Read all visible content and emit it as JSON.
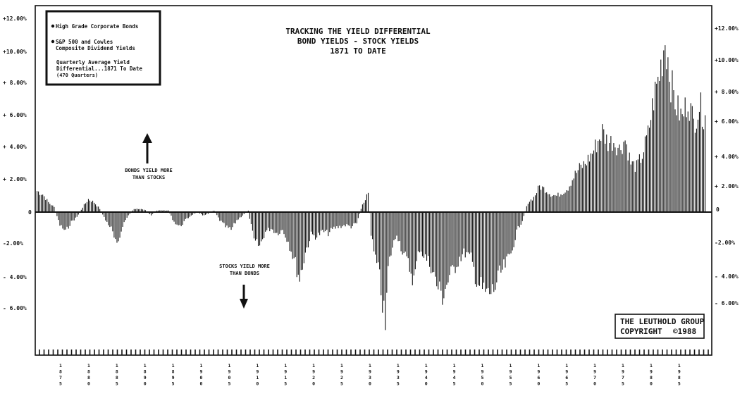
{
  "title": {
    "line1": "TRACKING THE YIELD DIFFERENTIAL",
    "line2": "BOND YIELDS - STOCK YIELDS",
    "line3": "1871 TO DATE"
  },
  "legend": {
    "item1": "High Grade Corporate Bonds",
    "item2_line1": "S&P 500 and Cowles",
    "item2_line2": "Composite Dividend Yields",
    "note_line1": "Quarterly Average Yield",
    "note_line2": "Differential...1871 To Date",
    "note_line3": "(470 Quarters)"
  },
  "annotations": {
    "bonds_line1": "BONDS YIELD MORE",
    "bonds_line2": "THAN STOCKS",
    "stocks_line1": "STOCKS YIELD MORE",
    "stocks_line2": "THAN BONDS"
  },
  "copyright": {
    "line1": "THE LEUTHOLD GROUP",
    "line2": "COPYRIGHT",
    "line3": "©1988"
  },
  "left_ticks": [
    "+12.00%",
    "+10.00%",
    "+ 8.00%",
    "+ 6.00%",
    "+ 4.00%",
    "+ 2.00%",
    "0",
    "-2.00%",
    "- 4.00%",
    "- 6.00%"
  ],
  "right_ticks": [
    "+12.00%",
    "+10.00%",
    "+ 8.00%",
    "+ 6.00%",
    "+ 4.00%",
    "+ 2.00%",
    "0",
    "-2.00%",
    "- 4.00%",
    "- 6.00%"
  ],
  "year_labels": [
    "1875",
    "1880",
    "1885",
    "1890",
    "1895",
    "1900",
    "1905",
    "1910",
    "1915",
    "1920",
    "1925",
    "1930",
    "1935",
    "1940",
    "1945",
    "1950",
    "1955",
    "1960",
    "1965",
    "1970",
    "1975",
    "1980",
    "1985"
  ],
  "chart_data": {
    "type": "bar",
    "x_unit": "year",
    "y_unit": "percent",
    "ylim": [
      -9.0,
      12.5
    ],
    "xlim": [
      1871,
      1988
    ],
    "grid": false,
    "legend_position": "top-left",
    "series": [
      {
        "x": [
          1871.0,
          1872.0,
          1873.0,
          1874.0,
          1875.0,
          1876.0,
          1877.0,
          1878.0,
          1879.0,
          1880.0,
          1881.0,
          1882.0,
          1883.0,
          1884.0,
          1885.0,
          1886.0,
          1887.0,
          1888.0,
          1889.0,
          1890.0,
          1891.0,
          1892.0,
          1893.0,
          1894.0,
          1895.0,
          1896.0,
          1897.0,
          1898.0,
          1899.0,
          1900.0,
          1901.0,
          1902.0,
          1903.0,
          1904.0,
          1905.0,
          1906.0,
          1907.0,
          1908.0,
          1909.0,
          1910.0,
          1911.0,
          1912.0,
          1913.0,
          1914.0,
          1915.0,
          1916.0,
          1917.0,
          1918.0,
          1919.0,
          1920.0,
          1921.0,
          1922.0,
          1923.0,
          1924.0,
          1925.0,
          1926.0,
          1927.0,
          1928.0,
          1929.0,
          1929.5,
          1930.0,
          1931.0,
          1932.0,
          1932.5,
          1933.0,
          1934.0,
          1935.0,
          1936.0,
          1937.0,
          1938.0,
          1939.0,
          1940.0,
          1941.0,
          1942.0,
          1943.0,
          1944.0,
          1945.0,
          1946.0,
          1947.0,
          1948.0,
          1949.0,
          1950.0,
          1951.0,
          1952.0,
          1953.0,
          1954.0,
          1955.0,
          1956.0,
          1957.0,
          1958.0,
          1959.0,
          1960.0,
          1961.0,
          1962.0,
          1963.0,
          1964.0,
          1965.0,
          1966.0,
          1967.0,
          1968.0,
          1969.0,
          1970.0,
          1971.0,
          1972.0,
          1973.0,
          1974.0,
          1975.0,
          1976.0,
          1977.0,
          1978.0,
          1979.0,
          1980.0,
          1981.0,
          1981.5,
          1982.0,
          1983.0,
          1984.0,
          1985.0,
          1986.0,
          1987.0,
          1988.0
        ],
        "values": [
          1.3,
          1.1,
          0.6,
          0.3,
          -0.8,
          -1.2,
          -0.6,
          -0.3,
          0.3,
          0.8,
          0.6,
          0.2,
          -0.5,
          -1.0,
          -2.2,
          -0.8,
          -0.2,
          0.2,
          0.2,
          0.1,
          -0.2,
          0.1,
          0.1,
          0.1,
          -0.6,
          -0.9,
          -0.5,
          -0.2,
          0.0,
          -0.2,
          -0.1,
          0.1,
          -0.5,
          -0.9,
          -1.1,
          -0.5,
          -0.2,
          0.1,
          -1.8,
          -2.1,
          -1.2,
          -1.0,
          -1.3,
          -1.1,
          -1.8,
          -2.9,
          -4.1,
          -2.5,
          -1.4,
          -1.5,
          -1.2,
          -1.3,
          -1.0,
          -0.9,
          -0.8,
          -0.9,
          -0.7,
          0.5,
          1.2,
          -1.3,
          -2.5,
          -4.0,
          -7.2,
          -3.5,
          -2.5,
          -1.3,
          -2.4,
          -3.2,
          -4.2,
          -2.2,
          -2.8,
          -3.3,
          -4.5,
          -5.2,
          -4.2,
          -3.5,
          -2.8,
          -2.5,
          -2.9,
          -4.2,
          -4.8,
          -5.1,
          -4.8,
          -3.9,
          -3.3,
          -2.6,
          -1.2,
          -0.5,
          0.6,
          0.9,
          1.6,
          1.4,
          1.1,
          1.0,
          1.2,
          1.5,
          2.2,
          2.7,
          3.0,
          3.5,
          4.2,
          5.0,
          4.3,
          4.4,
          3.9,
          4.5,
          3.0,
          2.8,
          3.5,
          4.8,
          7.0,
          8.5,
          10.7,
          9.5,
          8.0,
          6.5,
          5.8,
          7.0,
          5.5,
          6.6,
          5.8
        ]
      }
    ]
  }
}
